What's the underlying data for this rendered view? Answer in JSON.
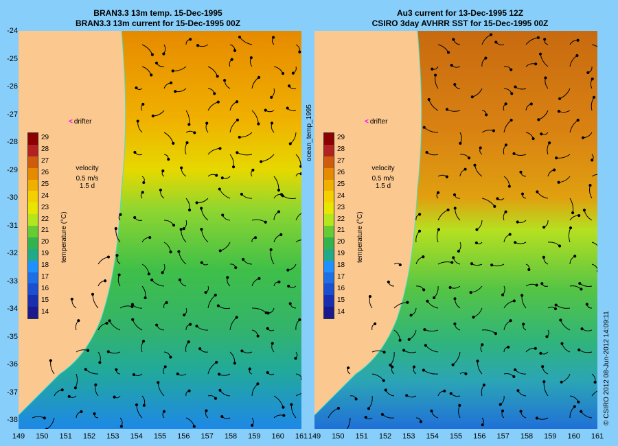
{
  "left_panel": {
    "title_line1": "BRAN3.3 13m temp. 15-Dec-1995",
    "title_line2": "BRAN3.3 13m current for 15-Dec-1995 00Z"
  },
  "right_panel": {
    "title_line1": "Au3 current for 13-Dec-1995 12Z",
    "title_line2": "CSIRO 3day AVHRR SST for 15-Dec-1995 00Z"
  },
  "lat_ticks": [
    "-24",
    "-25",
    "-26",
    "-27",
    "-28",
    "-29",
    "-30",
    "-31",
    "-32",
    "-33",
    "-34",
    "-35",
    "-36",
    "-37",
    "-38"
  ],
  "lon_ticks_left": [
    "149",
    "150",
    "151",
    "152",
    "153",
    "154",
    "155",
    "156",
    "157",
    "158",
    "159",
    "160",
    "161"
  ],
  "lon_ticks_right": [
    "149",
    "150",
    "151",
    "152",
    "153",
    "154",
    "155",
    "156",
    "157",
    "158",
    "159",
    "160",
    "161"
  ],
  "legend": {
    "ticks": [
      "29",
      "28",
      "27",
      "26",
      "25",
      "24",
      "23",
      "22",
      "21",
      "20",
      "19",
      "18",
      "17",
      "16",
      "15",
      "14"
    ],
    "label": "temperature (°C)",
    "colors": [
      "#8b0000",
      "#b22222",
      "#cd5c0c",
      "#e68a00",
      "#f0b000",
      "#f5d000",
      "#e6e600",
      "#b5e61d",
      "#66cc33",
      "#33b34d",
      "#22aa88",
      "#1e90ff",
      "#1e6ee6",
      "#1a4fd0",
      "#1a2fb0",
      "#1a1a8c"
    ]
  },
  "velocity_scale": {
    "label": "velocity",
    "speed": "0.5 m/s",
    "time": "1.5 d"
  },
  "drifter_label": "drifter",
  "center_vertical_text": "ocean_temp_1995",
  "right_vertical_text": "© CSIRO 2012  08-Jun-2012 14:09:11"
}
